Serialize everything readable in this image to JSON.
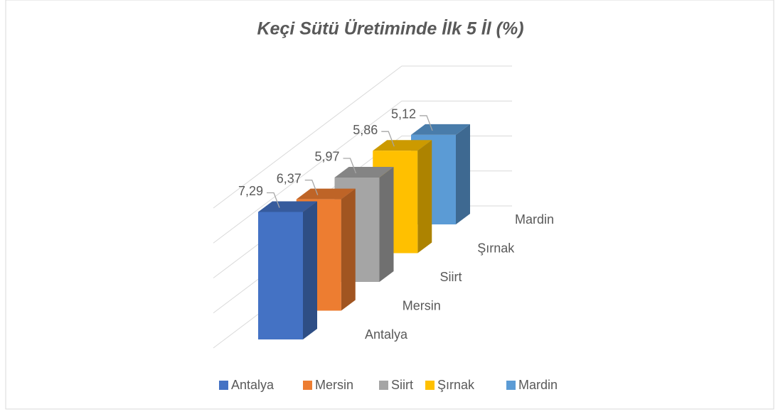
{
  "chart_data": {
    "type": "bar3d",
    "title": "Keçi Sütü Üretiminde İlk 5 İl (%)",
    "categories": [
      "Antalya",
      "Mersin",
      "Siirt",
      "Şırnak",
      "Mardin"
    ],
    "values": [
      7.29,
      6.37,
      5.97,
      5.86,
      5.12
    ],
    "value_labels": [
      "7,29",
      "6,37",
      "5,97",
      "5,86",
      "5,12"
    ],
    "colors": [
      "#4472c4",
      "#ed7d31",
      "#a5a5a5",
      "#ffc000",
      "#5b9bd5"
    ],
    "ylim": [
      0,
      8
    ],
    "yticks": [
      0,
      2,
      4,
      6,
      8
    ],
    "grid": true,
    "legend": "bottom"
  }
}
